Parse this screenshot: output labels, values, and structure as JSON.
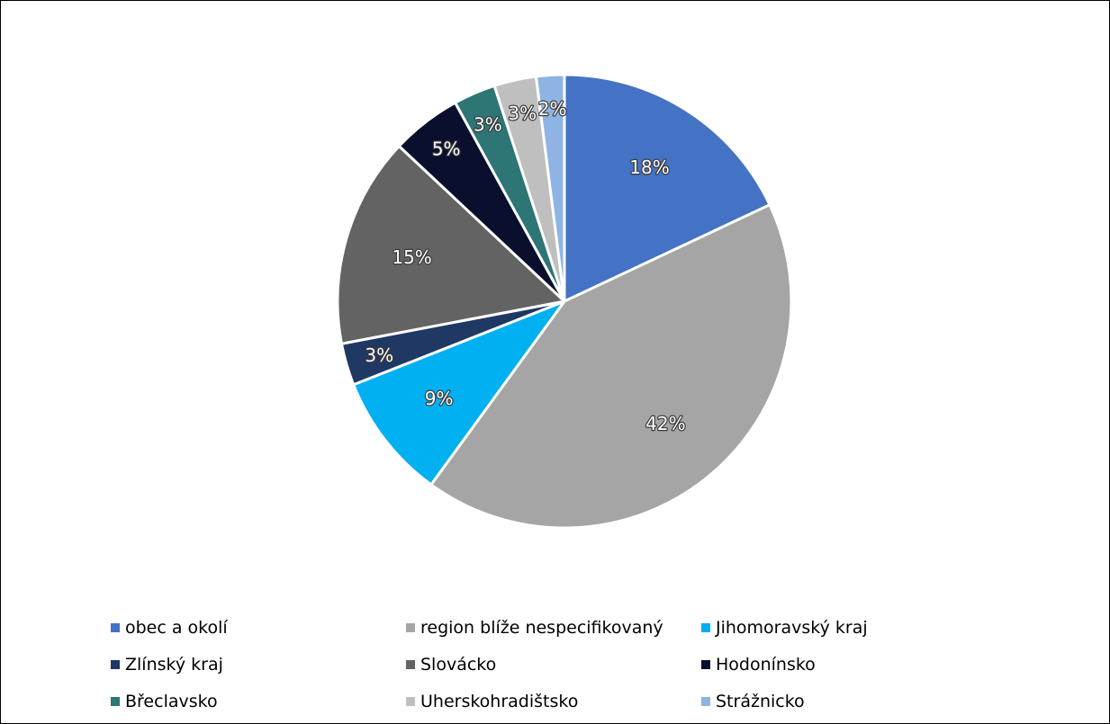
{
  "chart_data": {
    "type": "pie",
    "title": "",
    "legend_position": "bottom",
    "slices": [
      {
        "name": "obec a okolí",
        "value": 18,
        "label": "18%",
        "color": "#4472C4"
      },
      {
        "name": "region blíže nespecifikovaný",
        "value": 42,
        "label": "42%",
        "color": "#A5A5A5"
      },
      {
        "name": "Jihomoravský kraj",
        "value": 9,
        "label": "9%",
        "color": "#00B0F0"
      },
      {
        "name": "Zlínský kraj",
        "value": 3,
        "label": "3%",
        "color": "#1F3864"
      },
      {
        "name": "Slovácko",
        "value": 15,
        "label": "15%",
        "color": "#636363"
      },
      {
        "name": "Hodonínsko",
        "value": 5,
        "label": "5%",
        "color": "#0B0F2E"
      },
      {
        "name": "Břeclavsko",
        "value": 3,
        "label": "3%",
        "color": "#2E7575"
      },
      {
        "name": "Uherskohradištsko",
        "value": 3,
        "label": "3%",
        "color": "#BFBFBF"
      },
      {
        "name": "Strážnicko",
        "value": 2,
        "label": "2%",
        "color": "#8FB4E3"
      }
    ]
  }
}
